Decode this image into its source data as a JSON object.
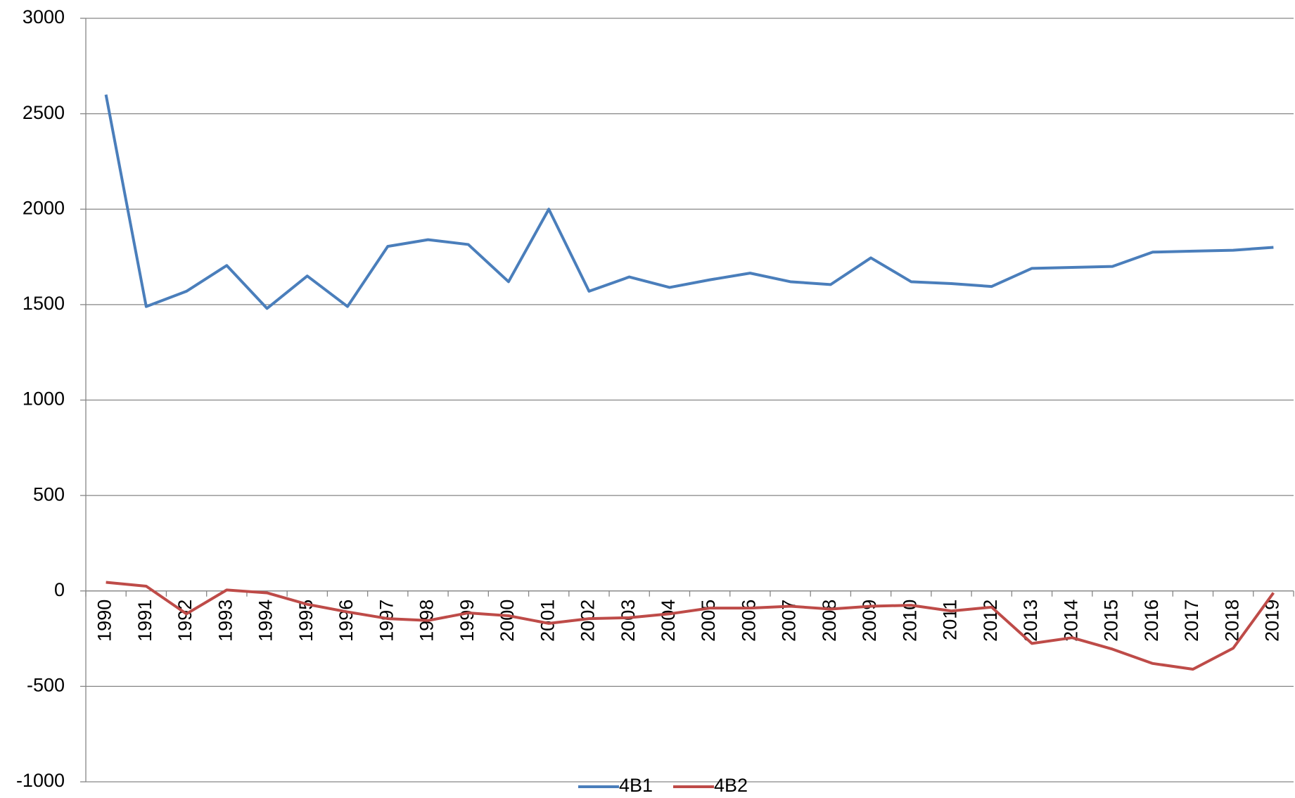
{
  "chart_data": {
    "type": "line",
    "categories": [
      "1990",
      "1991",
      "1992",
      "1993",
      "1994",
      "1995",
      "1996",
      "1997",
      "1998",
      "1999",
      "2000",
      "2001",
      "2002",
      "2003",
      "2004",
      "2005",
      "2006",
      "2007",
      "2008",
      "2009",
      "2010",
      "2011",
      "2012",
      "2013",
      "2014",
      "2015",
      "2016",
      "2017",
      "2018",
      "2019"
    ],
    "series": [
      {
        "name": "4B1",
        "color": "#4a7ebb",
        "values": [
          2600,
          1490,
          1570,
          1705,
          1480,
          1650,
          1490,
          1805,
          1840,
          1815,
          1620,
          2000,
          1570,
          1645,
          1590,
          1630,
          1665,
          1620,
          1605,
          1745,
          1620,
          1610,
          1595,
          1690,
          1695,
          1700,
          1775,
          1780,
          1785,
          1800
        ]
      },
      {
        "name": "4B2",
        "color": "#be4b48",
        "values": [
          45,
          25,
          -120,
          5,
          -10,
          -70,
          -110,
          -145,
          -155,
          -115,
          -130,
          -170,
          -145,
          -140,
          -120,
          -90,
          -90,
          -80,
          -95,
          -80,
          -75,
          -105,
          -85,
          -275,
          -245,
          -305,
          -380,
          -410,
          -300,
          -10
        ]
      }
    ],
    "ylim": [
      -1000,
      3000
    ],
    "yticks": [
      -1000,
      -500,
      0,
      500,
      1000,
      1500,
      2000,
      2500,
      3000
    ],
    "grid": true,
    "legend": "bottom"
  }
}
